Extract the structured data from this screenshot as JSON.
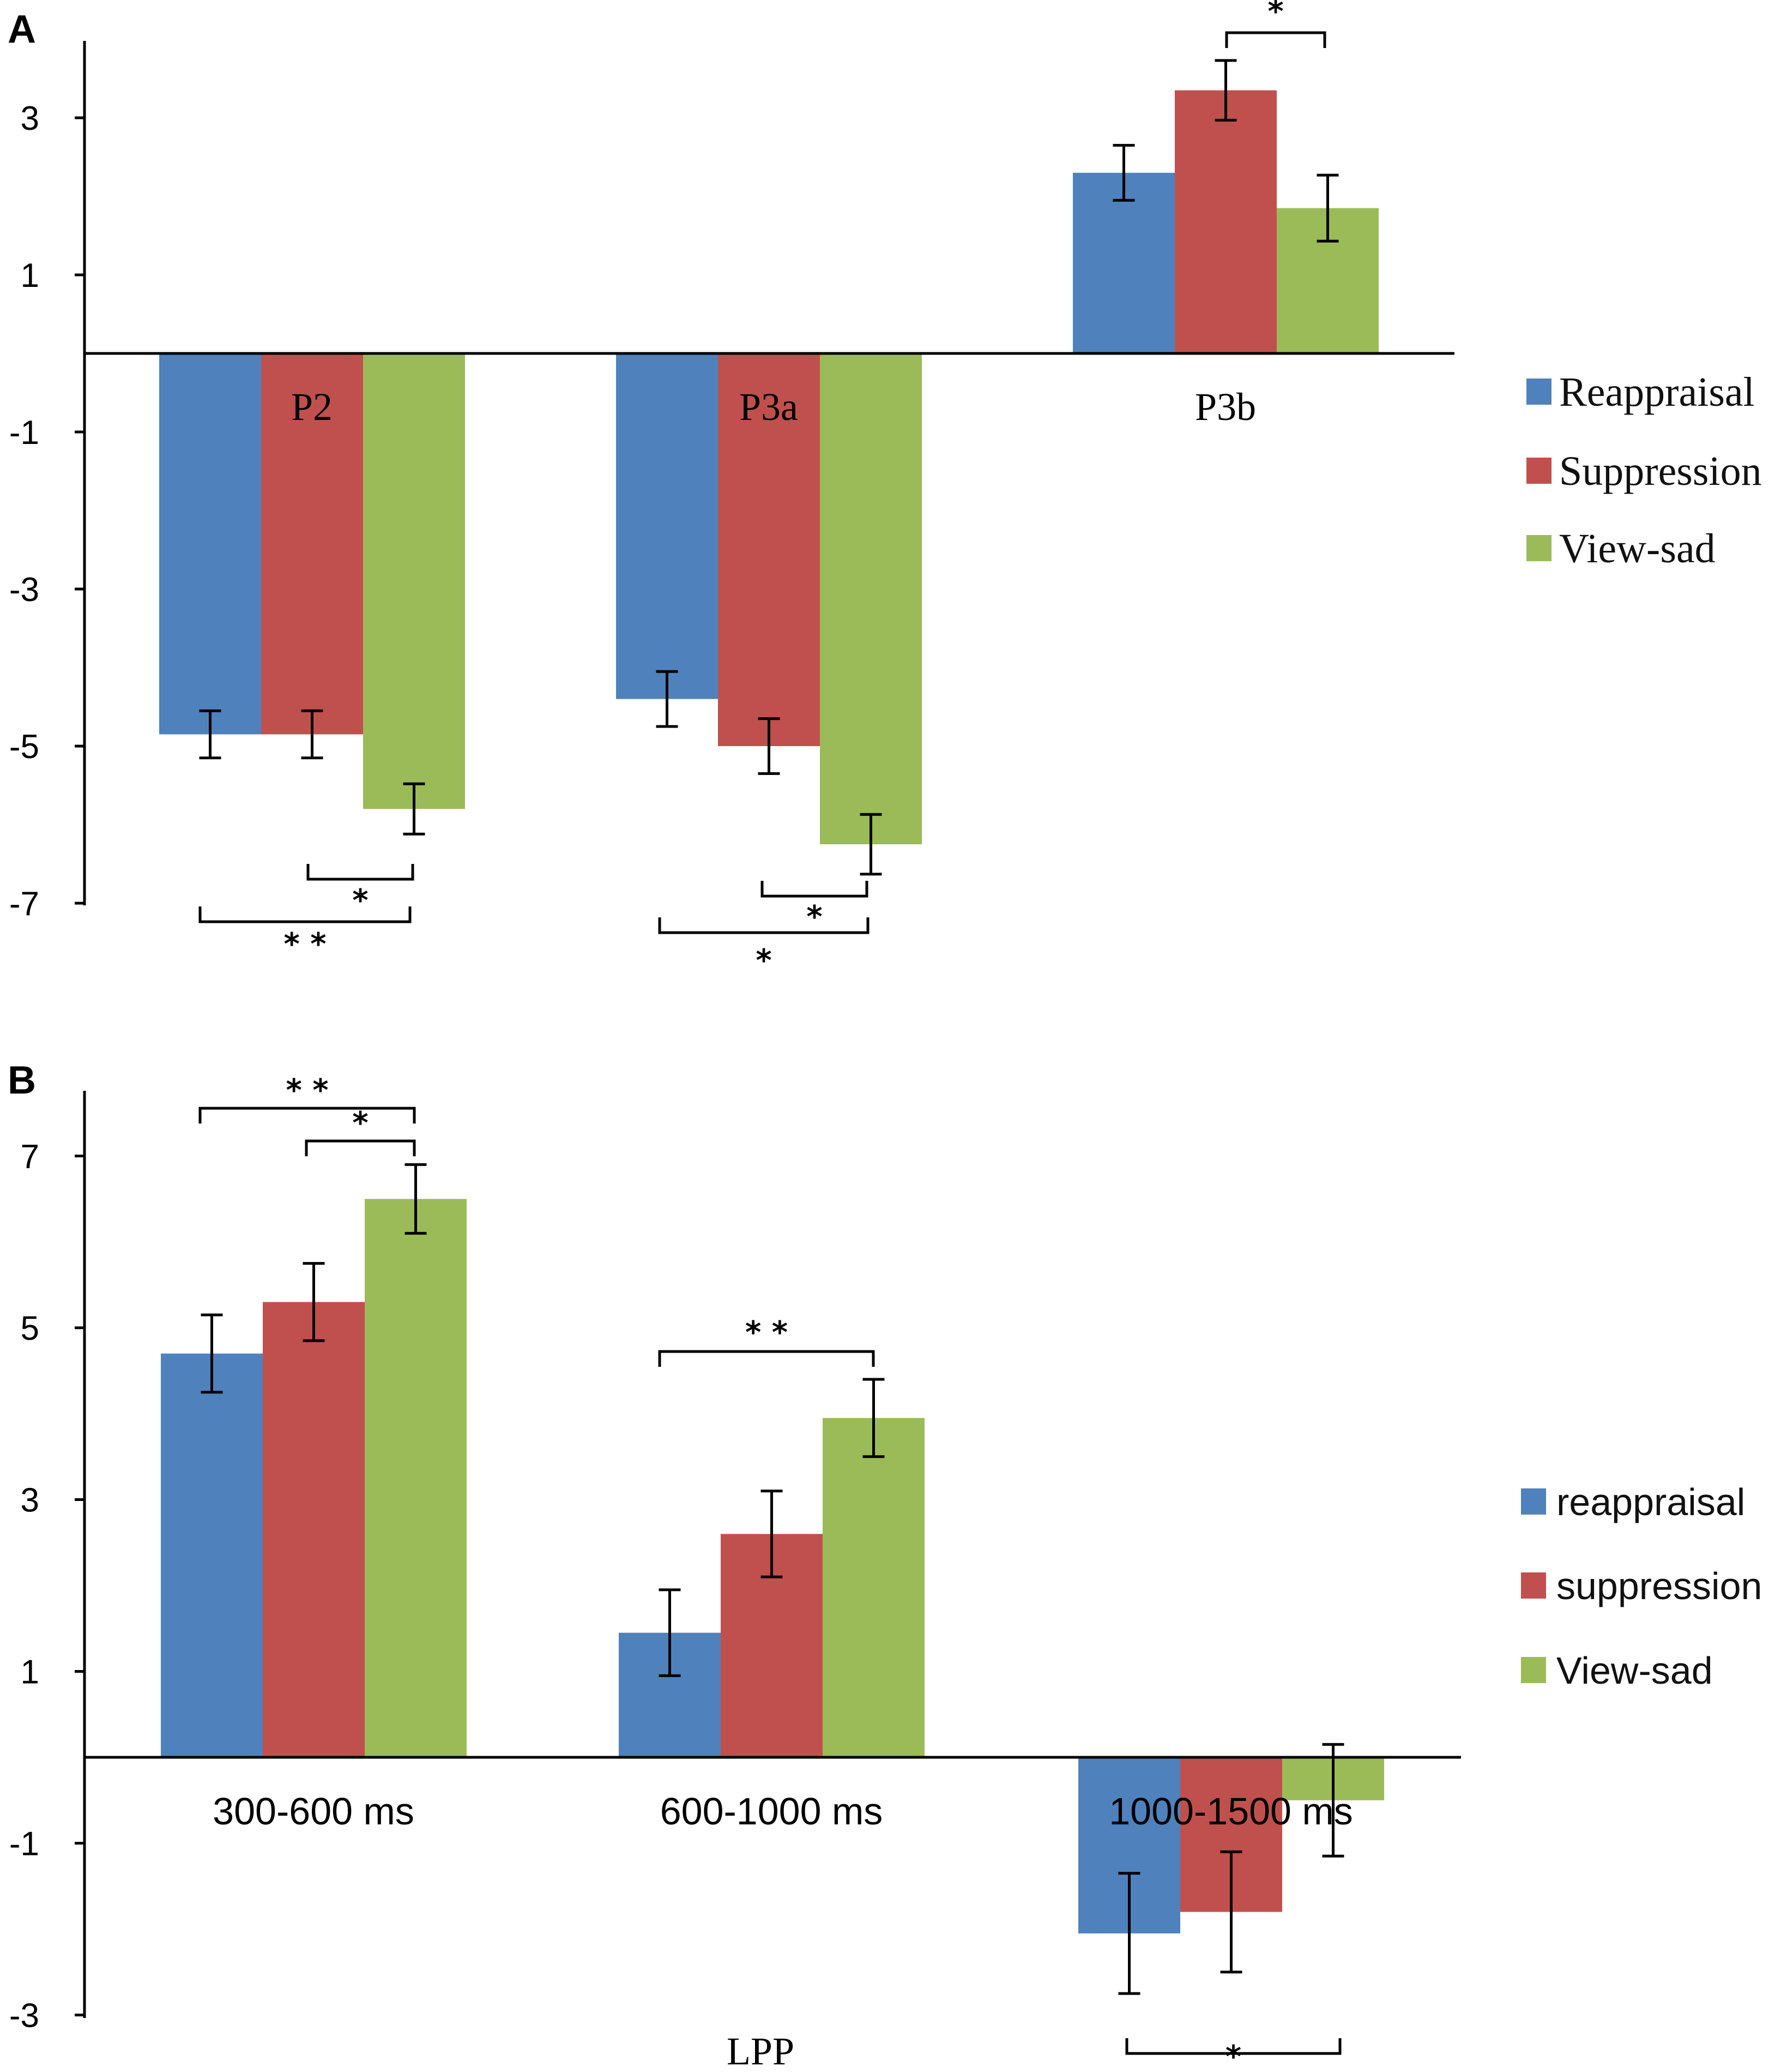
{
  "chart_data": [
    {
      "panel": "A",
      "type": "bar",
      "categories": [
        "P2",
        "P3a",
        "P3b"
      ],
      "ylim": [
        -7,
        4
      ],
      "yticks": [
        3,
        1,
        -1,
        -3,
        -5,
        -7
      ],
      "xlabel": "",
      "ylabel": "",
      "legend_position": "right",
      "series": [
        {
          "name": "Reappraisal",
          "color": "#4f81bd",
          "values": [
            -4.85,
            -4.4,
            2.3
          ],
          "errors": [
            0.3,
            0.35,
            0.35
          ]
        },
        {
          "name": "Suppression",
          "color": "#c0504d",
          "values": [
            -4.85,
            -5.0,
            3.35
          ],
          "errors": [
            0.3,
            0.35,
            0.38
          ]
        },
        {
          "name": "View-sad",
          "color": "#9bbb59",
          "values": [
            -5.8,
            -6.25,
            1.85
          ],
          "errors": [
            0.32,
            0.38,
            0.42
          ]
        }
      ],
      "significance": [
        {
          "group": 0,
          "from": 1,
          "to": 2,
          "label": "*",
          "side": "below"
        },
        {
          "group": 0,
          "from": 0,
          "to": 2,
          "label": "* *",
          "side": "below"
        },
        {
          "group": 1,
          "from": 1,
          "to": 2,
          "label": "*",
          "side": "below"
        },
        {
          "group": 1,
          "from": 0,
          "to": 2,
          "label": "*",
          "side": "below"
        },
        {
          "group": 2,
          "from": 1,
          "to": 2,
          "label": "*",
          "side": "above"
        }
      ]
    },
    {
      "panel": "B",
      "type": "bar",
      "categories": [
        "300-600 ms",
        "600-1000 ms",
        "1000-1500 ms"
      ],
      "ylim": [
        -3,
        7.5
      ],
      "yticks": [
        7,
        5,
        3,
        1,
        -1,
        -3
      ],
      "xlabel": "LPP",
      "ylabel": "",
      "legend_position": "right",
      "series": [
        {
          "name": "reappraisal",
          "color": "#4f81bd",
          "values": [
            4.7,
            1.45,
            -2.05
          ],
          "errors": [
            0.45,
            0.5,
            0.7
          ]
        },
        {
          "name": "suppression",
          "color": "#c0504d",
          "values": [
            5.3,
            2.6,
            -1.8
          ],
          "errors": [
            0.45,
            0.5,
            0.7
          ]
        },
        {
          "name": "View-sad",
          "color": "#9bbb59",
          "values": [
            6.5,
            3.95,
            -0.5
          ],
          "errors": [
            0.4,
            0.45,
            0.65
          ]
        }
      ],
      "significance": [
        {
          "group": 0,
          "from": 0,
          "to": 2,
          "label": "* *",
          "side": "above"
        },
        {
          "group": 0,
          "from": 1,
          "to": 2,
          "label": "*",
          "side": "above"
        },
        {
          "group": 1,
          "from": 0,
          "to": 2,
          "label": "* *",
          "side": "above"
        },
        {
          "group": 2,
          "from": 0,
          "to": 2,
          "label": "*",
          "side": "below"
        }
      ]
    }
  ]
}
